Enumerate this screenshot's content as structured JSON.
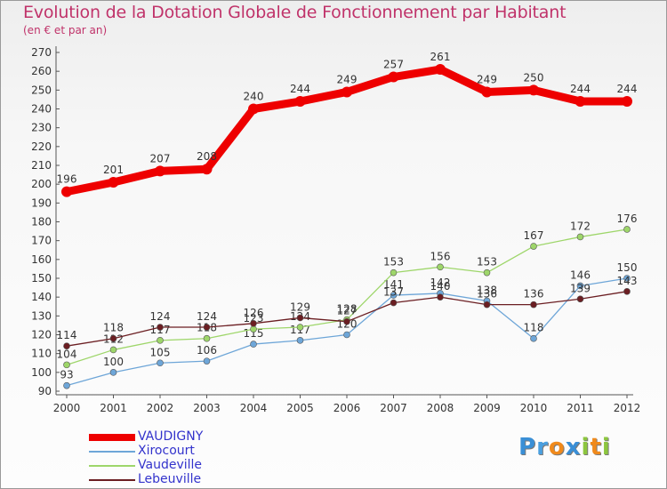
{
  "header": {
    "title": "Evolution de la Dotation Globale de Fonctionnement par Habitant",
    "subtitle": "(en € et par an)"
  },
  "logo": {
    "text": "Proxiti",
    "letters": [
      {
        "ch": "P",
        "color": "#3a8fd6"
      },
      {
        "ch": "r",
        "color": "#4aa0e0"
      },
      {
        "ch": "o",
        "color": "#f08a1c"
      },
      {
        "ch": "x",
        "color": "#3a8fd6"
      },
      {
        "ch": "i",
        "color": "#8dc63f"
      },
      {
        "ch": "t",
        "color": "#f08a1c"
      },
      {
        "ch": "i",
        "color": "#8dc63f"
      }
    ]
  },
  "chart_data": {
    "type": "line",
    "x": [
      "2000",
      "2001",
      "2002",
      "2003",
      "2004",
      "2005",
      "2006",
      "2007",
      "2008",
      "2009",
      "2010",
      "2011",
      "2012"
    ],
    "ylim": [
      90,
      270
    ],
    "yticks": [
      90,
      100,
      110,
      120,
      130,
      140,
      150,
      160,
      170,
      180,
      190,
      200,
      210,
      220,
      230,
      240,
      250,
      260,
      270
    ],
    "grid": false,
    "legend_position": "bottom-left",
    "series": [
      {
        "name": "VAUDIGNY",
        "color": "#ee0000",
        "values": [
          196,
          201,
          207,
          208,
          240,
          244,
          249,
          257,
          261,
          249,
          250,
          244,
          244
        ]
      },
      {
        "name": "Xirocourt",
        "color": "#6ea6d8",
        "values": [
          93,
          100,
          105,
          106,
          115,
          117,
          120,
          141,
          142,
          138,
          118,
          146,
          150
        ]
      },
      {
        "name": "Vaudeville",
        "color": "#9ed66a",
        "values": [
          104,
          112,
          117,
          118,
          123,
          124,
          128,
          153,
          156,
          153,
          167,
          172,
          176
        ]
      },
      {
        "name": "Lebeuville",
        "color": "#6b1e22",
        "values": [
          114,
          118,
          124,
          124,
          126,
          129,
          127,
          137,
          140,
          136,
          136,
          139,
          143
        ]
      }
    ]
  }
}
